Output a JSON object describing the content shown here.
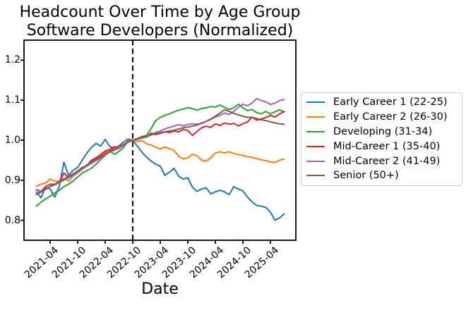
{
  "figure": {
    "title": "Headcount Over Time by Age Group",
    "subtitle": "Software Developers (Normalized)",
    "xlabel": "Date"
  },
  "chart_data": {
    "type": "line",
    "title": "Headcount Over Time by Age Group",
    "subtitle": "Software Developers (Normalized)",
    "xlabel": "Date",
    "ylabel": "",
    "grid": false,
    "legend_position": "outside-right",
    "ylim": [
      0.75,
      1.25
    ],
    "y_ticks": [
      "0.8",
      "0.9",
      "1.0",
      "1.1",
      "1.2"
    ],
    "x_tick_labels": [
      "2021-04",
      "2021-10",
      "2022-04",
      "2022-10",
      "2023-04",
      "2023-10",
      "2024-04",
      "2024-10",
      "2025-04"
    ],
    "vline": {
      "x": "2022-10",
      "style": "dashed",
      "color": "#000000"
    },
    "x": [
      "2021-01",
      "2021-02",
      "2021-03",
      "2021-04",
      "2021-05",
      "2021-06",
      "2021-07",
      "2021-08",
      "2021-09",
      "2021-10",
      "2021-11",
      "2021-12",
      "2022-01",
      "2022-02",
      "2022-03",
      "2022-04",
      "2022-05",
      "2022-06",
      "2022-07",
      "2022-08",
      "2022-09",
      "2022-10",
      "2022-11",
      "2022-12",
      "2023-01",
      "2023-02",
      "2023-03",
      "2023-04",
      "2023-05",
      "2023-06",
      "2023-07",
      "2023-08",
      "2023-09",
      "2023-10",
      "2023-11",
      "2023-12",
      "2024-01",
      "2024-02",
      "2024-03",
      "2024-04",
      "2024-05",
      "2024-06",
      "2024-07",
      "2024-08",
      "2024-09",
      "2024-10",
      "2024-11",
      "2024-12",
      "2025-01",
      "2025-02",
      "2025-03",
      "2025-04",
      "2025-05",
      "2025-06",
      "2025-07"
    ],
    "series": [
      {
        "name": "Early Career 1 (22-25)",
        "color": "#1f77b4",
        "values": [
          0.87,
          0.856,
          0.882,
          0.878,
          0.858,
          0.885,
          0.945,
          0.912,
          0.925,
          0.932,
          0.95,
          0.968,
          0.982,
          0.992,
          0.985,
          1.002,
          0.984,
          0.981,
          0.986,
          0.996,
          1.003,
          1.0,
          0.985,
          0.97,
          0.958,
          0.948,
          0.94,
          0.935,
          0.912,
          0.92,
          0.93,
          0.91,
          0.903,
          0.906,
          0.883,
          0.872,
          0.878,
          0.881,
          0.866,
          0.871,
          0.875,
          0.871,
          0.864,
          0.884,
          0.878,
          0.873,
          0.858,
          0.846,
          0.837,
          0.835,
          0.832,
          0.82,
          0.8,
          0.806,
          0.816
        ]
      },
      {
        "name": "Early Career 2 (26-30)",
        "color": "#ff7f0e",
        "values": [
          0.885,
          0.89,
          0.893,
          0.903,
          0.898,
          0.897,
          0.905,
          0.898,
          0.91,
          0.918,
          0.928,
          0.938,
          0.948,
          0.954,
          0.962,
          0.97,
          0.974,
          0.98,
          0.984,
          0.989,
          0.995,
          1.0,
          0.997,
          0.999,
          0.991,
          0.988,
          0.982,
          0.978,
          0.983,
          0.979,
          0.974,
          0.96,
          0.953,
          0.956,
          0.965,
          0.961,
          0.95,
          0.948,
          0.956,
          0.968,
          0.971,
          0.968,
          0.971,
          0.967,
          0.964,
          0.962,
          0.959,
          0.957,
          0.954,
          0.951,
          0.949,
          0.946,
          0.944,
          0.95,
          0.953
        ]
      },
      {
        "name": "Developing (31-34)",
        "color": "#2ca02c",
        "values": [
          0.835,
          0.845,
          0.853,
          0.86,
          0.868,
          0.875,
          0.884,
          0.89,
          0.898,
          0.908,
          0.918,
          0.924,
          0.93,
          0.94,
          0.952,
          0.962,
          0.972,
          0.965,
          0.972,
          0.982,
          0.997,
          1.0,
          1.004,
          1.009,
          1.012,
          1.029,
          1.049,
          1.057,
          1.062,
          1.066,
          1.071,
          1.075,
          1.078,
          1.081,
          1.079,
          1.075,
          1.079,
          1.081,
          1.084,
          1.083,
          1.088,
          1.082,
          1.077,
          1.081,
          1.09,
          1.081,
          1.074,
          1.077,
          1.069,
          1.066,
          1.072,
          1.066,
          1.071,
          1.076,
          1.07
        ]
      },
      {
        "name": "Mid-Career 1 (35-40)",
        "color": "#d62728",
        "values": [
          0.876,
          0.872,
          0.884,
          0.89,
          0.89,
          0.896,
          0.918,
          0.906,
          0.914,
          0.923,
          0.932,
          0.936,
          0.95,
          0.956,
          0.964,
          0.973,
          0.977,
          0.984,
          0.98,
          0.989,
          0.998,
          1.0,
          1.004,
          1.008,
          1.008,
          1.018,
          1.014,
          1.017,
          1.021,
          1.019,
          1.023,
          1.021,
          1.027,
          1.024,
          1.012,
          1.022,
          1.031,
          1.035,
          1.032,
          1.041,
          1.037,
          1.043,
          1.04,
          1.042,
          1.036,
          1.041,
          1.046,
          1.058,
          1.05,
          1.053,
          1.057,
          1.062,
          1.058,
          1.066,
          1.072
        ]
      },
      {
        "name": "Mid-Career 2 (41-49)",
        "color": "#9467bd",
        "values": [
          0.868,
          0.872,
          0.878,
          0.884,
          0.888,
          0.894,
          0.9,
          0.906,
          0.912,
          0.92,
          0.928,
          0.935,
          0.942,
          0.949,
          0.956,
          0.963,
          0.97,
          0.975,
          0.98,
          0.987,
          0.995,
          1.0,
          1.002,
          1.005,
          1.008,
          1.014,
          1.019,
          1.023,
          1.028,
          1.032,
          1.035,
          1.039,
          1.036,
          1.039,
          1.041,
          1.04,
          1.043,
          1.047,
          1.052,
          1.058,
          1.062,
          1.068,
          1.064,
          1.072,
          1.082,
          1.09,
          1.086,
          1.093,
          1.104,
          1.099,
          1.096,
          1.089,
          1.093,
          1.099,
          1.102
        ]
      },
      {
        "name": "Senior (50+)",
        "color": "#8c564b",
        "values": [
          0.864,
          0.87,
          0.877,
          0.884,
          0.89,
          0.897,
          0.903,
          0.909,
          0.916,
          0.923,
          0.93,
          0.938,
          0.946,
          0.952,
          0.959,
          0.966,
          0.972,
          0.978,
          0.983,
          0.99,
          0.996,
          1.0,
          1.003,
          1.007,
          1.01,
          1.013,
          1.016,
          1.019,
          1.021,
          1.023,
          1.025,
          1.028,
          1.031,
          1.033,
          1.035,
          1.038,
          1.042,
          1.047,
          1.053,
          1.06,
          1.068,
          1.076,
          1.072,
          1.067,
          1.063,
          1.06,
          1.057,
          1.057,
          1.054,
          1.051,
          1.049,
          1.046,
          1.043,
          1.041,
          1.04
        ]
      }
    ]
  }
}
